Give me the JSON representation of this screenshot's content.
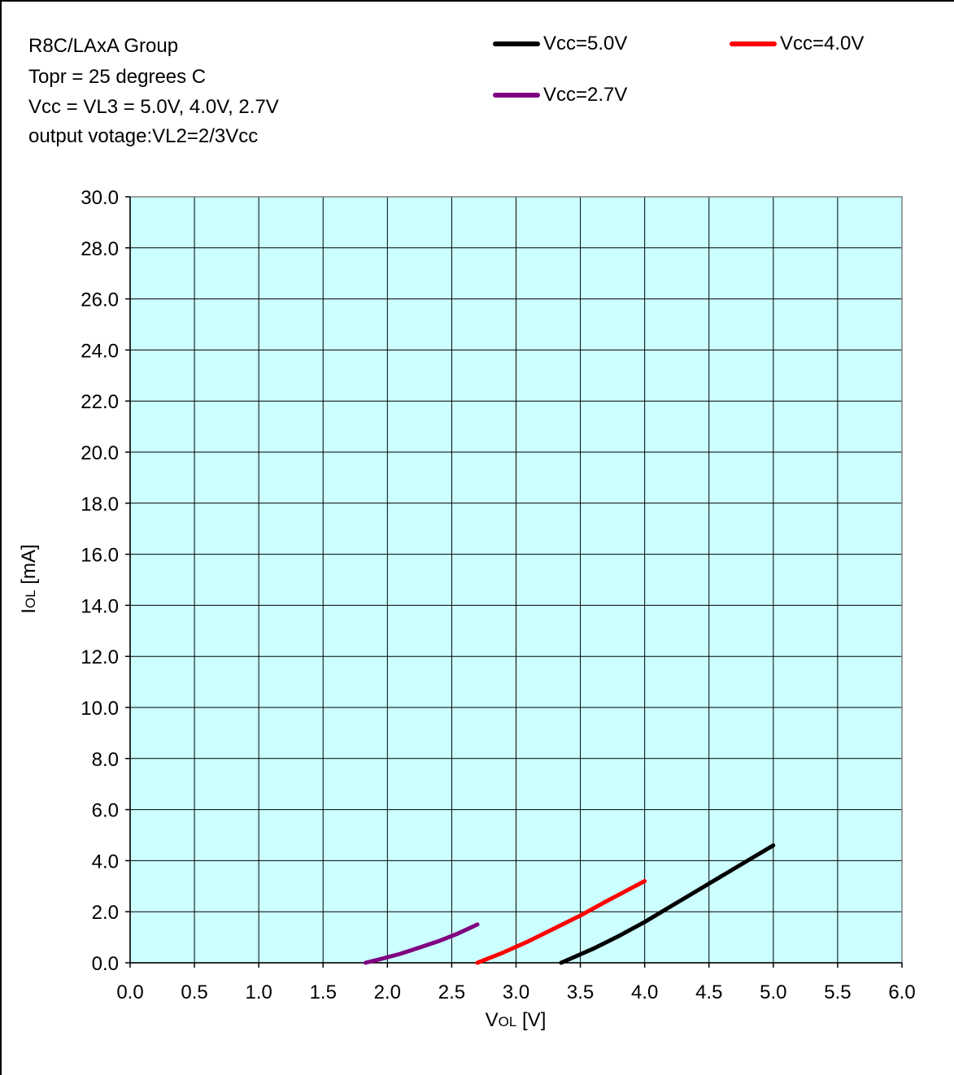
{
  "notes": [
    "R8C/LAxA  Group",
    "Topr = 25 degrees C",
    "Vcc = VL3 = 5.0V, 4.0V, 2.7V",
    "output votage:VL2=2/3Vcc"
  ],
  "colors": {
    "plot_bg": "#ccffff",
    "grid": "#000000",
    "plot_border": "#808080"
  },
  "chart_data": {
    "type": "line",
    "xlabel": {
      "main": "V",
      "sub": "OL",
      "unit": " [V]"
    },
    "ylabel": {
      "main": "I",
      "sub": "OL",
      "unit": " [mA]"
    },
    "xlim": [
      0,
      6
    ],
    "ylim": [
      0,
      30
    ],
    "xticks": [
      "0.0",
      "0.5",
      "1.0",
      "1.5",
      "2.0",
      "2.5",
      "3.0",
      "3.5",
      "4.0",
      "4.5",
      "5.0",
      "5.5",
      "6.0"
    ],
    "yticks": [
      "0.0",
      "2.0",
      "4.0",
      "6.0",
      "8.0",
      "10.0",
      "12.0",
      "14.0",
      "16.0",
      "18.0",
      "20.0",
      "22.0",
      "24.0",
      "26.0",
      "28.0",
      "30.0"
    ],
    "grid": true,
    "legend_position": "top-right",
    "series": [
      {
        "name": "Vcc=5.0V",
        "color": "#000000",
        "x": [
          3.35,
          3.6,
          3.8,
          4.0,
          4.2,
          4.4,
          4.6,
          4.8,
          5.0
        ],
        "y": [
          0.0,
          0.55,
          1.05,
          1.6,
          2.2,
          2.8,
          3.4,
          4.0,
          4.6
        ]
      },
      {
        "name": "Vcc=4.0V",
        "color": "#ff0000",
        "x": [
          2.7,
          2.9,
          3.1,
          3.3,
          3.5,
          3.7,
          3.85,
          4.0
        ],
        "y": [
          0.0,
          0.4,
          0.85,
          1.35,
          1.85,
          2.4,
          2.8,
          3.2
        ]
      },
      {
        "name": "Vcc=2.7V",
        "color": "#800080",
        "x": [
          1.83,
          1.95,
          2.1,
          2.25,
          2.4,
          2.55,
          2.7
        ],
        "y": [
          0.0,
          0.15,
          0.35,
          0.6,
          0.85,
          1.15,
          1.5
        ]
      }
    ]
  }
}
